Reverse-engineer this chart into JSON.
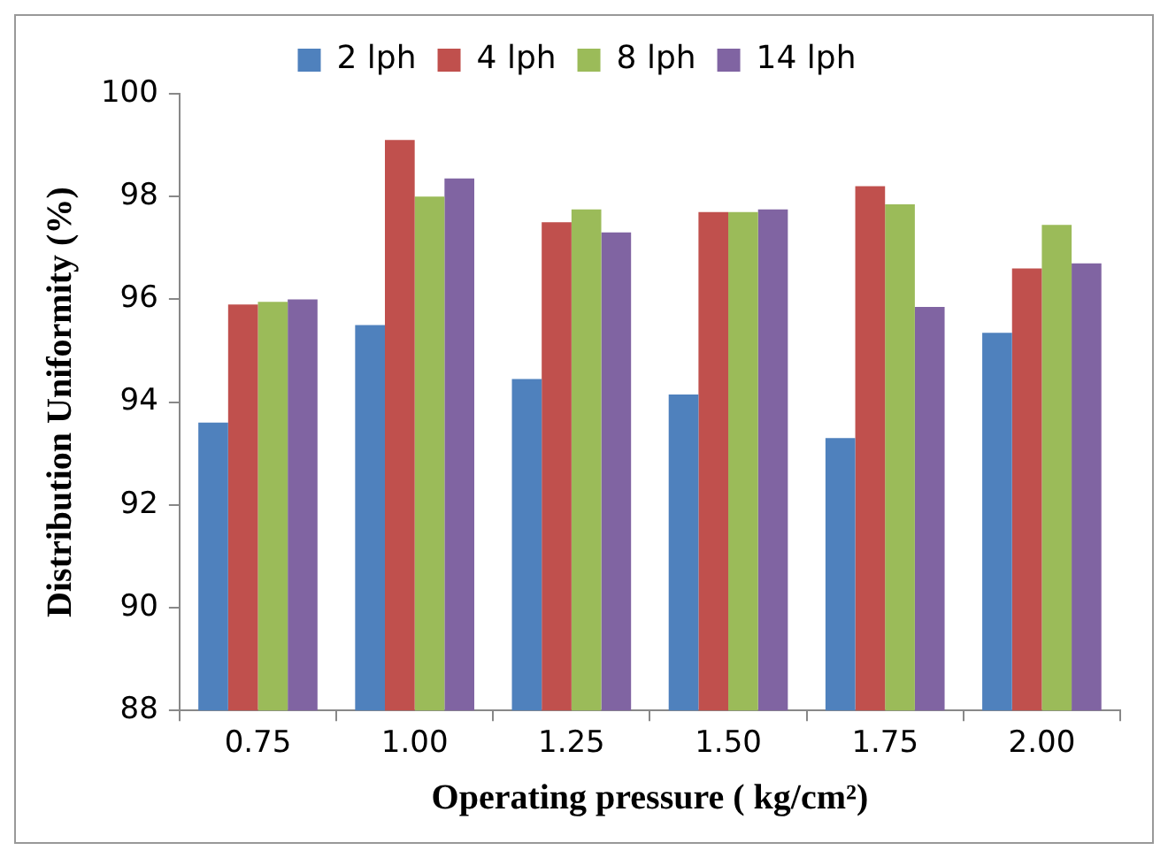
{
  "chart_data": {
    "type": "bar",
    "xlabel": "Operating pressure ( kg/cm²)",
    "ylabel": "Distribution Uniformity (%)",
    "categories": [
      "0.75",
      "1.00",
      "1.25",
      "1.50",
      "1.75",
      "2.00"
    ],
    "series": [
      {
        "name": "2 lph",
        "color": "#4f81bd",
        "values": [
          93.6,
          95.5,
          94.45,
          94.15,
          93.3,
          95.35
        ]
      },
      {
        "name": "4 lph",
        "color": "#c0504d",
        "values": [
          95.9,
          99.1,
          97.5,
          97.7,
          98.2,
          96.6
        ]
      },
      {
        "name": "8 lph",
        "color": "#9bbb59",
        "values": [
          95.95,
          98.0,
          97.75,
          97.7,
          97.85,
          97.45
        ]
      },
      {
        "name": "14 lph",
        "color": "#8064a2",
        "values": [
          96.0,
          98.35,
          97.3,
          97.75,
          95.85,
          96.7
        ]
      }
    ],
    "ylim": [
      88,
      100
    ],
    "yticks": [
      88,
      90,
      92,
      94,
      96,
      98,
      100
    ],
    "grid": false,
    "legend": "top"
  }
}
